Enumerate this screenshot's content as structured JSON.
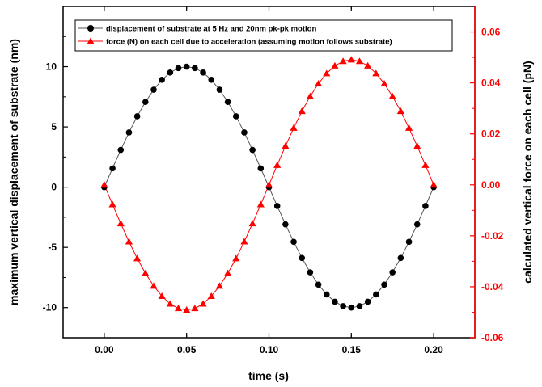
{
  "chart_data": {
    "type": "line",
    "title": "",
    "xlabel": "time (s)",
    "ylabel_left": "maximum vertical displacement of substrate (nm)",
    "ylabel_right": "calculated vertical force on each cell (pN)",
    "xlim": [
      -0.025,
      0.225
    ],
    "ylim_left": [
      -12.5,
      15
    ],
    "ylim_right": [
      -0.06,
      0.07
    ],
    "x_ticks": [
      0.0,
      0.05,
      0.1,
      0.15,
      0.2
    ],
    "x_tick_labels": [
      "0.00",
      "0.05",
      "0.10",
      "0.15",
      "0.20"
    ],
    "y_left_ticks": [
      -10,
      -5,
      0,
      5,
      10
    ],
    "y_left_tick_labels": [
      "-10",
      "-5",
      "0",
      "5",
      "10"
    ],
    "y_right_ticks": [
      -0.06,
      -0.04,
      -0.02,
      0.0,
      0.02,
      0.04,
      0.06
    ],
    "y_right_tick_labels": [
      "-0.06",
      "-0.04",
      "-0.02",
      "0.00",
      "0.02",
      "0.04",
      "0.06"
    ],
    "grid": false,
    "legend_position": "top",
    "x": [
      0.0,
      0.005,
      0.01,
      0.015,
      0.02,
      0.025,
      0.03,
      0.035,
      0.04,
      0.045,
      0.05,
      0.055,
      0.06,
      0.065,
      0.07,
      0.075,
      0.08,
      0.085,
      0.09,
      0.095,
      0.1,
      0.105,
      0.11,
      0.115,
      0.12,
      0.125,
      0.13,
      0.135,
      0.14,
      0.145,
      0.15,
      0.155,
      0.16,
      0.165,
      0.17,
      0.175,
      0.18,
      0.185,
      0.19,
      0.195,
      0.2
    ],
    "series": [
      {
        "name": "displacement of substrate at 5 Hz and 20nm pk-pk motion",
        "axis": "left",
        "marker": "circle",
        "color": "#000000",
        "line_color": "#555555",
        "values": [
          0,
          1.56,
          3.09,
          4.54,
          5.88,
          7.07,
          8.09,
          8.91,
          9.51,
          9.88,
          10.0,
          9.88,
          9.51,
          8.91,
          8.09,
          7.07,
          5.88,
          4.54,
          3.09,
          1.56,
          0,
          -1.56,
          -3.09,
          -4.54,
          -5.88,
          -7.07,
          -8.09,
          -8.91,
          -9.51,
          -9.88,
          -10.0,
          -9.88,
          -9.51,
          -8.91,
          -8.09,
          -7.07,
          -5.88,
          -4.54,
          -3.09,
          -1.56,
          0
        ]
      },
      {
        "name": "force (N) on each cell due to acceleration (assuming motion follows substrate)",
        "axis": "right",
        "marker": "triangle",
        "color": "#ff0000",
        "line_color": "#ff0000",
        "values": [
          0,
          -0.0077,
          -0.0152,
          -0.0223,
          -0.0289,
          -0.0347,
          -0.0397,
          -0.0437,
          -0.0467,
          -0.0485,
          -0.0491,
          -0.0485,
          -0.0467,
          -0.0437,
          -0.0397,
          -0.0347,
          -0.0289,
          -0.0223,
          -0.0152,
          -0.0077,
          0,
          0.0077,
          0.0152,
          0.0223,
          0.0289,
          0.0347,
          0.0397,
          0.0437,
          0.0467,
          0.0485,
          0.0491,
          0.0485,
          0.0467,
          0.0437,
          0.0397,
          0.0347,
          0.0289,
          0.0223,
          0.0152,
          0.0077,
          0
        ]
      }
    ]
  }
}
